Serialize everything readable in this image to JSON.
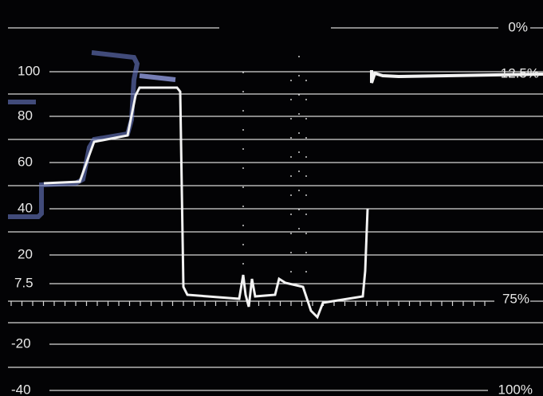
{
  "left_scale": [
    "100",
    "80",
    "60",
    "40",
    "20",
    "7.5",
    "-20",
    "-40"
  ],
  "right_scale": [
    "0%",
    "12.5%",
    "75%",
    "100%"
  ]
}
